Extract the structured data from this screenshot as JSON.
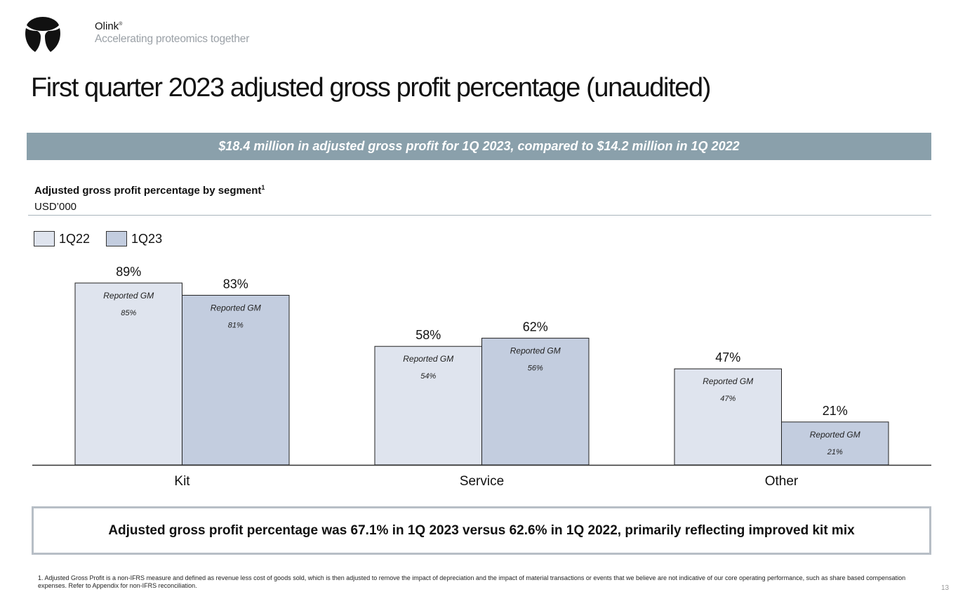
{
  "header": {
    "logo_icon": "olink-tri-leaf-logo",
    "brand_name": "Olink",
    "brand_mark": "®",
    "tagline": "Accelerating proteomics together"
  },
  "title": "First quarter 2023 adjusted gross profit percentage (unaudited)",
  "banner": "$18.4 million in adjusted gross profit for 1Q 2023, compared to $14.2 million in 1Q 2022",
  "section": {
    "heading": "Adjusted gross profit percentage by segment",
    "heading_sup": "1",
    "unit": "USD’000"
  },
  "colors": {
    "banner": "#8aa0ab",
    "series_1Q22": "#dfe4ee",
    "series_1Q23": "#c3cddf",
    "bar_border": "#222222",
    "callout_border": "#b7bec6"
  },
  "chart_data": {
    "type": "bar",
    "title": "Adjusted gross profit percentage by segment",
    "xlabel": "",
    "ylabel": "",
    "ylim": [
      0,
      100
    ],
    "grid": false,
    "legend_position": "top-left",
    "categories": [
      "Kit",
      "Service",
      "Other"
    ],
    "series": [
      {
        "name": "1Q22",
        "values": [
          89,
          58,
          47
        ],
        "labels": [
          "89%",
          "58%",
          "47%"
        ],
        "inner_caption": "Reported GM",
        "inner_values": [
          "85%",
          "54%",
          "47%"
        ]
      },
      {
        "name": "1Q23",
        "values": [
          83,
          62,
          21
        ],
        "labels": [
          "83%",
          "62%",
          "21%"
        ],
        "inner_caption": "Reported GM",
        "inner_values": [
          "81%",
          "56%",
          "21%"
        ]
      }
    ]
  },
  "callout": "Adjusted gross profit percentage was 67.1% in 1Q 2023 versus 62.6% in 1Q 2022, primarily reflecting improved kit mix",
  "footnote": "1. Adjusted Gross Profit is a non-IFRS measure and defined as revenue less cost of goods sold, which is then adjusted to remove the impact of depreciation and the impact of material transactions or events that we believe are not indicative of our core operating performance, such as share based compensation expenses. Refer to Appendix for non-IFRS reconciliation.",
  "page_number": "13"
}
